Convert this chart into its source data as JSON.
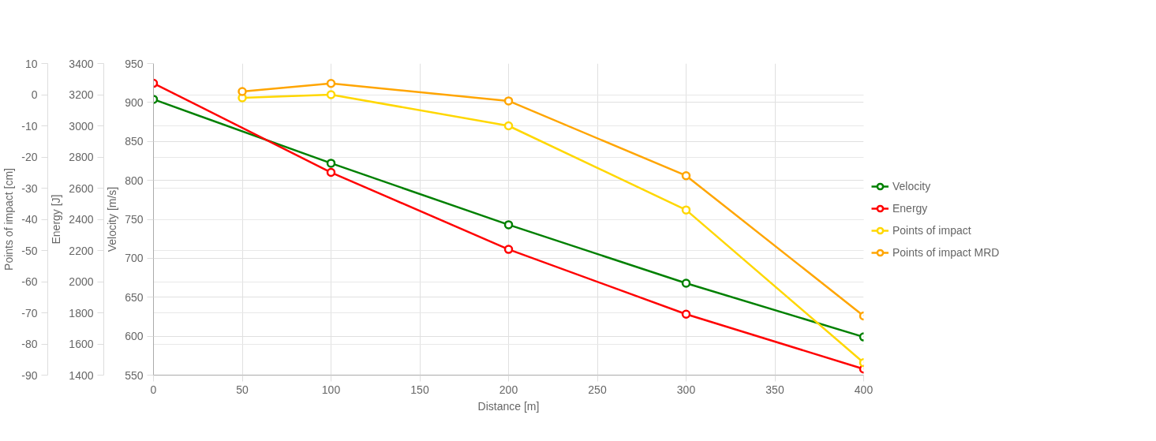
{
  "chart_data": {
    "type": "line",
    "xlabel": "Distance [m]",
    "ylabel": "Velocity [m/s]",
    "y3label": "Energy [J]",
    "y2label": "Points of impact [cm]",
    "xlim": [
      0,
      400
    ],
    "xticks": [
      0,
      50,
      100,
      150,
      200,
      250,
      300,
      350,
      400
    ],
    "ylim": [
      550,
      950
    ],
    "yticks": [
      550,
      600,
      650,
      700,
      750,
      800,
      850,
      900,
      950
    ],
    "y3lim": [
      1400,
      3400
    ],
    "y3ticks": [
      1400,
      1600,
      1800,
      2000,
      2200,
      2400,
      2600,
      2800,
      3000,
      3200,
      3400
    ],
    "y2lim": [
      -90,
      10
    ],
    "y2ticks": [
      -90,
      -80,
      -70,
      -60,
      -50,
      -40,
      -30,
      -20,
      -10,
      0,
      10
    ],
    "grid": true,
    "legend": "right",
    "marker": "circle",
    "line_style": "solid",
    "series": [
      {
        "name": "Velocity",
        "color": "#008000",
        "x": [
          0,
          100,
          200,
          300,
          400
        ],
        "values": [
          904,
          822,
          743,
          668,
          599
        ]
      },
      {
        "name": "Energy",
        "color": "#ff0000",
        "axis": "y3",
        "x": [
          0,
          100,
          200,
          300,
          400
        ],
        "values": [
          3273,
          2701,
          2207,
          1791,
          1439
        ]
      },
      {
        "name": "Points of impact",
        "color": "#ffd700",
        "axis": "y2",
        "x": [
          50,
          100,
          200,
          300,
          400
        ],
        "values": [
          -1,
          0,
          -10,
          -37,
          -86
        ]
      },
      {
        "name": "Points of impact MRD",
        "color": "#ffa500",
        "axis": "y2",
        "x": [
          50,
          100,
          200,
          300,
          400
        ],
        "values": [
          1,
          3.6,
          -2,
          -26,
          -71
        ]
      }
    ]
  }
}
